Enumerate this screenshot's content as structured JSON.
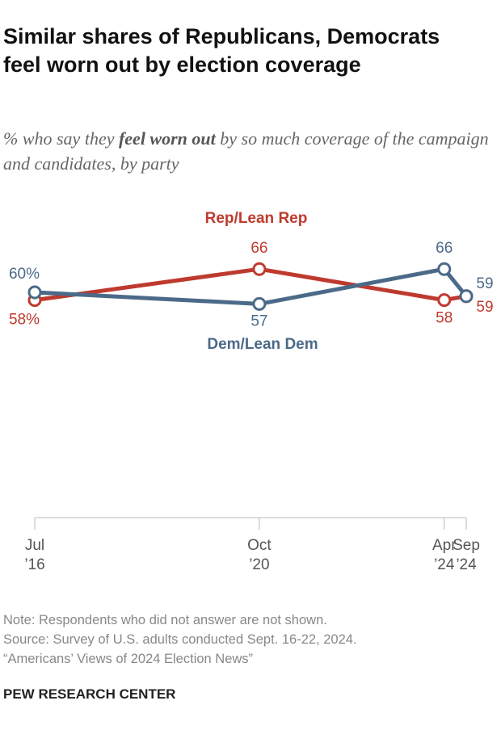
{
  "chart_data": {
    "type": "line",
    "title": "Similar shares of Republicans, Democrats feel worn out by election coverage",
    "subtitle": [
      "% who say they ",
      "feel worn out",
      " by so much coverage of the campaign and candidates, by party"
    ],
    "x": [
      "2016-07",
      "2020-10",
      "2024-04",
      "2024-09"
    ],
    "xlim": [
      "2016-07",
      "2024-09"
    ],
    "xticks": [
      {
        "value": "2016-07",
        "label": "Jul ’16"
      },
      {
        "value": "2020-10",
        "label": "Oct ’20"
      },
      {
        "value": "2024-04",
        "label": "Apr ’24"
      },
      {
        "value": "2024-09",
        "label": "Sep ’24"
      }
    ],
    "ylim": [
      0,
      100
    ],
    "series": [
      {
        "name": "Rep/Lean Rep",
        "color": "#bf3a2e",
        "values": [
          58,
          66,
          58,
          59
        ],
        "value_labels": [
          "58%",
          "66",
          "58",
          "59"
        ]
      },
      {
        "name": "Dem/Lean Dem",
        "color": "#4b6a89",
        "values": [
          60,
          57,
          66,
          59
        ],
        "value_labels": [
          "60%",
          "57",
          "66",
          "59"
        ]
      }
    ],
    "notes": [
      "Note: Respondents who did not answer are not shown.",
      "Source: Survey of U.S. adults conducted Sept. 16-22, 2024.",
      "“Americans’ Views of 2024 Election News”"
    ],
    "brand": "PEW RESEARCH CENTER"
  }
}
